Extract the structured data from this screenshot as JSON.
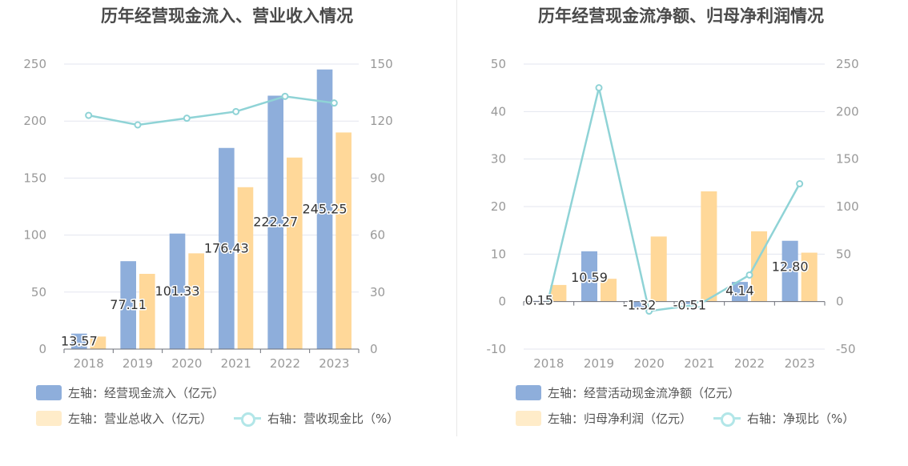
{
  "chart_data": [
    {
      "type": "bar",
      "title": "历年经营现金流入、营业收入情况",
      "categories": [
        "2018",
        "2019",
        "2020",
        "2021",
        "2022",
        "2023"
      ],
      "left_axis": {
        "ylim": [
          0,
          250
        ],
        "ticks": [
          "0",
          "50",
          "100",
          "150",
          "200",
          "250"
        ]
      },
      "right_axis": {
        "ylim": [
          0,
          150
        ],
        "ticks": [
          "0",
          "30",
          "60",
          "90",
          "120",
          "150"
        ]
      },
      "series": [
        {
          "name": "左轴：经营现金流入（亿元）",
          "kind": "bar",
          "axis": "left",
          "color": "#8eaedb",
          "values": [
            13.57,
            77.11,
            101.33,
            176.43,
            222.27,
            245.25
          ],
          "labels": [
            "13.57",
            "77.11",
            "101.33",
            "176.43",
            "222.27",
            "245.25"
          ]
        },
        {
          "name": "左轴：营业总收入（亿元）",
          "kind": "bar",
          "axis": "left",
          "color": "#ffd899",
          "values": [
            11.0,
            66.0,
            84.0,
            142.0,
            168.0,
            190.0
          ]
        },
        {
          "name": "右轴：营收现金比（%）",
          "kind": "line",
          "axis": "right",
          "color": "#8fd3d6",
          "values": [
            123.0,
            118.0,
            121.5,
            125.0,
            133.0,
            129.5
          ]
        }
      ]
    },
    {
      "type": "bar",
      "title": "历年经营现金流净额、归母净利润情况",
      "categories": [
        "2018",
        "2019",
        "2020",
        "2021",
        "2022",
        "2023"
      ],
      "left_axis": {
        "ylim": [
          -10,
          50
        ],
        "ticks": [
          "-10",
          "0",
          "10",
          "20",
          "30",
          "40",
          "50"
        ]
      },
      "right_axis": {
        "ylim": [
          -50,
          250
        ],
        "ticks": [
          "-50",
          "0",
          "50",
          "100",
          "150",
          "200",
          "250"
        ]
      },
      "series": [
        {
          "name": "左轴：经营活动现金流净额（亿元）",
          "kind": "bar",
          "axis": "left",
          "color": "#8eaedb",
          "values": [
            0.15,
            10.59,
            -1.32,
            -0.51,
            4.14,
            12.8
          ],
          "labels": [
            "0.15",
            "10.59",
            "-1.32",
            "-0.51",
            "4.14",
            "12.80"
          ]
        },
        {
          "name": "左轴：归母净利润（亿元）",
          "kind": "bar",
          "axis": "left",
          "color": "#ffd899",
          "values": [
            3.5,
            4.8,
            13.7,
            23.2,
            14.8,
            10.3
          ]
        },
        {
          "name": "右轴：净现比（%）",
          "kind": "line",
          "axis": "right",
          "color": "#8fd3d6",
          "values": [
            4.0,
            225.0,
            -10.0,
            -3.0,
            28.0,
            124.0
          ]
        }
      ]
    }
  ]
}
